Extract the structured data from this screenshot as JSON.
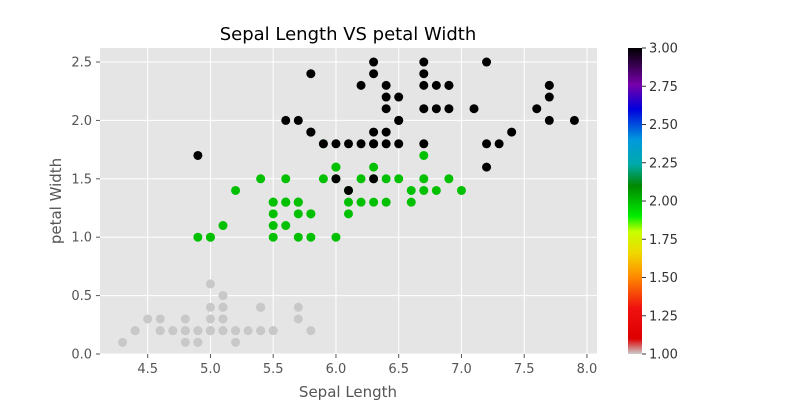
{
  "chart_data": {
    "type": "scatter",
    "title": "Sepal Length VS petal Width",
    "xlabel": "Sepal Length",
    "ylabel": "petal Width",
    "xlim": [
      4.12,
      8.08
    ],
    "ylim": [
      0.0,
      2.62
    ],
    "xticks": [
      4.5,
      5.0,
      5.5,
      6.0,
      6.5,
      7.0,
      7.5,
      8.0
    ],
    "yticks": [
      0.0,
      0.5,
      1.0,
      1.5,
      2.0,
      2.5
    ],
    "grid": true,
    "background": "#e5e5e5",
    "colorbar": {
      "range": [
        1.0,
        3.0
      ],
      "ticks": [
        1.0,
        1.25,
        1.5,
        1.75,
        2.0,
        2.25,
        2.5,
        2.75,
        3.0
      ],
      "colormap": "nipy_spectral_r"
    },
    "series": [
      {
        "color_value": 1.0,
        "color": "#c8c8c8",
        "points": [
          [
            5.1,
            0.2
          ],
          [
            4.9,
            0.2
          ],
          [
            4.7,
            0.2
          ],
          [
            4.6,
            0.2
          ],
          [
            5.0,
            0.2
          ],
          [
            5.4,
            0.4
          ],
          [
            4.6,
            0.3
          ],
          [
            5.0,
            0.2
          ],
          [
            4.4,
            0.2
          ],
          [
            4.9,
            0.1
          ],
          [
            5.4,
            0.2
          ],
          [
            4.8,
            0.2
          ],
          [
            4.8,
            0.1
          ],
          [
            4.3,
            0.1
          ],
          [
            5.8,
            0.2
          ],
          [
            5.7,
            0.4
          ],
          [
            5.4,
            0.4
          ],
          [
            5.1,
            0.3
          ],
          [
            5.7,
            0.3
          ],
          [
            5.1,
            0.3
          ],
          [
            5.4,
            0.2
          ],
          [
            5.1,
            0.4
          ],
          [
            4.6,
            0.2
          ],
          [
            5.1,
            0.5
          ],
          [
            4.8,
            0.2
          ],
          [
            5.0,
            0.2
          ],
          [
            5.0,
            0.4
          ],
          [
            5.2,
            0.2
          ],
          [
            5.2,
            0.2
          ],
          [
            4.7,
            0.2
          ],
          [
            4.8,
            0.2
          ],
          [
            5.4,
            0.4
          ],
          [
            5.2,
            0.1
          ],
          [
            5.5,
            0.2
          ],
          [
            4.9,
            0.2
          ],
          [
            5.0,
            0.2
          ],
          [
            5.5,
            0.2
          ],
          [
            4.9,
            0.1
          ],
          [
            4.4,
            0.2
          ],
          [
            5.1,
            0.2
          ],
          [
            5.0,
            0.3
          ],
          [
            4.5,
            0.3
          ],
          [
            4.4,
            0.2
          ],
          [
            5.0,
            0.6
          ],
          [
            5.1,
            0.4
          ],
          [
            4.8,
            0.3
          ],
          [
            5.1,
            0.2
          ],
          [
            4.6,
            0.2
          ],
          [
            5.3,
            0.2
          ],
          [
            5.0,
            0.2
          ]
        ]
      },
      {
        "color_value": 2.0,
        "color": "#00c000",
        "points": [
          [
            7.0,
            1.4
          ],
          [
            6.4,
            1.5
          ],
          [
            6.9,
            1.5
          ],
          [
            5.5,
            1.3
          ],
          [
            6.5,
            1.5
          ],
          [
            5.7,
            1.3
          ],
          [
            6.3,
            1.6
          ],
          [
            4.9,
            1.0
          ],
          [
            6.6,
            1.3
          ],
          [
            5.2,
            1.4
          ],
          [
            5.0,
            1.0
          ],
          [
            5.9,
            1.5
          ],
          [
            6.0,
            1.0
          ],
          [
            6.1,
            1.4
          ],
          [
            5.6,
            1.3
          ],
          [
            6.7,
            1.4
          ],
          [
            5.6,
            1.5
          ],
          [
            5.8,
            1.0
          ],
          [
            6.2,
            1.5
          ],
          [
            5.6,
            1.1
          ],
          [
            5.9,
            1.8
          ],
          [
            6.1,
            1.3
          ],
          [
            6.3,
            1.5
          ],
          [
            6.1,
            1.2
          ],
          [
            6.4,
            1.3
          ],
          [
            6.6,
            1.4
          ],
          [
            6.8,
            1.4
          ],
          [
            6.7,
            1.7
          ],
          [
            6.0,
            1.5
          ],
          [
            5.7,
            1.0
          ],
          [
            5.5,
            1.1
          ],
          [
            5.5,
            1.0
          ],
          [
            5.8,
            1.2
          ],
          [
            6.0,
            1.6
          ],
          [
            5.4,
            1.5
          ],
          [
            6.0,
            1.6
          ],
          [
            6.7,
            1.5
          ],
          [
            6.3,
            1.3
          ],
          [
            5.6,
            1.3
          ],
          [
            5.5,
            1.3
          ],
          [
            5.5,
            1.2
          ],
          [
            6.1,
            1.4
          ],
          [
            5.8,
            1.2
          ],
          [
            5.0,
            1.0
          ],
          [
            5.6,
            1.3
          ],
          [
            5.7,
            1.2
          ],
          [
            5.7,
            1.3
          ],
          [
            6.2,
            1.3
          ],
          [
            5.1,
            1.1
          ],
          [
            5.7,
            1.3
          ]
        ]
      },
      {
        "color_value": 3.0,
        "color": "#000000",
        "points": [
          [
            6.3,
            2.5
          ],
          [
            5.8,
            1.9
          ],
          [
            7.1,
            2.1
          ],
          [
            6.3,
            1.8
          ],
          [
            6.5,
            2.2
          ],
          [
            7.6,
            2.1
          ],
          [
            4.9,
            1.7
          ],
          [
            7.3,
            1.8
          ],
          [
            6.7,
            1.8
          ],
          [
            7.2,
            2.5
          ],
          [
            6.5,
            2.0
          ],
          [
            6.4,
            1.9
          ],
          [
            6.8,
            2.1
          ],
          [
            5.7,
            2.0
          ],
          [
            5.8,
            2.4
          ],
          [
            6.4,
            2.3
          ],
          [
            6.5,
            1.8
          ],
          [
            7.7,
            2.2
          ],
          [
            7.7,
            2.3
          ],
          [
            6.0,
            1.5
          ],
          [
            6.9,
            2.3
          ],
          [
            5.6,
            2.0
          ],
          [
            7.7,
            2.0
          ],
          [
            6.3,
            1.8
          ],
          [
            6.7,
            2.1
          ],
          [
            7.2,
            1.8
          ],
          [
            6.2,
            1.8
          ],
          [
            6.1,
            1.8
          ],
          [
            6.4,
            2.1
          ],
          [
            7.2,
            1.6
          ],
          [
            7.4,
            1.9
          ],
          [
            7.9,
            2.0
          ],
          [
            6.4,
            2.2
          ],
          [
            6.3,
            1.5
          ],
          [
            6.1,
            1.4
          ],
          [
            7.7,
            2.3
          ],
          [
            6.3,
            2.4
          ],
          [
            6.4,
            1.8
          ],
          [
            6.0,
            1.8
          ],
          [
            6.9,
            2.1
          ],
          [
            6.7,
            2.4
          ],
          [
            6.9,
            2.3
          ],
          [
            5.8,
            1.9
          ],
          [
            6.8,
            2.3
          ],
          [
            6.7,
            2.5
          ],
          [
            6.7,
            2.3
          ],
          [
            6.3,
            1.9
          ],
          [
            6.5,
            2.0
          ],
          [
            6.2,
            2.3
          ],
          [
            5.9,
            1.8
          ]
        ]
      }
    ]
  }
}
